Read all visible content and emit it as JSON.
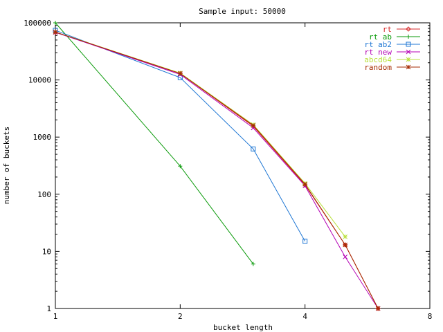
{
  "chart_data": {
    "type": "line",
    "title": "Sample input: 50000",
    "xlabel": "bucket length",
    "ylabel": "number of buckets",
    "x_scale": "log2",
    "y_scale": "log10",
    "xlim": [
      1,
      8
    ],
    "ylim": [
      1,
      100000
    ],
    "x_ticks": [
      1,
      2,
      4,
      8
    ],
    "x_tick_labels": [
      "1",
      "2",
      "4",
      "8"
    ],
    "y_ticks": [
      1,
      10,
      100,
      1000,
      10000,
      100000
    ],
    "y_tick_labels": [
      "1",
      "10",
      "100",
      "1000",
      "10000",
      "100000"
    ],
    "grid": false,
    "legend_position": "top-right",
    "series": [
      {
        "name": "rt",
        "color": "#d62728",
        "marker": "diamond",
        "x": [
          1,
          2,
          3,
          4,
          5,
          6
        ],
        "y": [
          68000,
          13000,
          1550,
          145,
          13,
          1
        ]
      },
      {
        "name": "rt ab",
        "color": "#0a9a0a",
        "marker": "plus",
        "x": [
          1,
          2,
          3
        ],
        "y": [
          100000,
          310,
          6
        ]
      },
      {
        "name": "rt ab2",
        "color": "#1f77d4",
        "marker": "square",
        "x": [
          1,
          2,
          3,
          4
        ],
        "y": [
          74000,
          11000,
          620,
          15
        ]
      },
      {
        "name": "rt new",
        "color": "#b400b4",
        "marker": "x",
        "x": [
          1,
          2,
          3,
          4,
          5,
          6
        ],
        "y": [
          68000,
          12500,
          1450,
          140,
          8,
          1
        ]
      },
      {
        "name": "abcd64",
        "color": "#b9e03a",
        "marker": "star",
        "x": [
          1,
          2,
          3,
          4,
          5
        ],
        "y": [
          69000,
          13200,
          1650,
          155,
          18
        ]
      },
      {
        "name": "random",
        "color": "#a52a00",
        "marker": "asterisk",
        "x": [
          1,
          2,
          3,
          4,
          5,
          6
        ],
        "y": [
          69000,
          13000,
          1600,
          150,
          13,
          1
        ]
      }
    ]
  }
}
